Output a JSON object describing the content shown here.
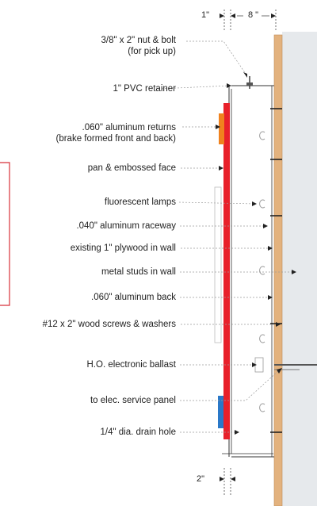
{
  "dimensions": {
    "top_left": "1\"",
    "top_right": "8 \"",
    "bottom": "2\""
  },
  "callouts": [
    {
      "id": "nut-bolt",
      "lines": [
        "3/8\" x 2\" nut & bolt",
        "(for pick up)"
      ]
    },
    {
      "id": "pvc-retainer",
      "lines": [
        "1\" PVC retainer"
      ]
    },
    {
      "id": "aluminum-returns",
      "lines": [
        ".060\" aluminum returns",
        "(brake formed front and back)"
      ]
    },
    {
      "id": "face",
      "lines": [
        "pan & embossed face"
      ]
    },
    {
      "id": "lamps",
      "lines": [
        "fluorescent lamps"
      ]
    },
    {
      "id": "raceway",
      "lines": [
        ".040\" aluminum raceway"
      ]
    },
    {
      "id": "plywood",
      "lines": [
        "existing 1\" plywood in wall"
      ]
    },
    {
      "id": "studs",
      "lines": [
        "metal studs in wall"
      ]
    },
    {
      "id": "back",
      "lines": [
        ".060\" aluminum back"
      ]
    },
    {
      "id": "screws",
      "lines": [
        "#12 x 2\" wood screws & washers"
      ]
    },
    {
      "id": "ballast",
      "lines": [
        "H.O. electronic ballast"
      ]
    },
    {
      "id": "service-panel",
      "lines": [
        "to elec. service panel"
      ]
    },
    {
      "id": "drain-hole",
      "lines": [
        "1/4\" dia. drain hole"
      ]
    }
  ],
  "colors": {
    "face": "#e8202a",
    "return_orange": "#f0821e",
    "return_blue": "#2a78c8",
    "plywood": "#e3b27e",
    "wall": "#e6e9ec",
    "line": "#333333",
    "leader": "#9a9a9a",
    "frame": "#d8323a"
  }
}
